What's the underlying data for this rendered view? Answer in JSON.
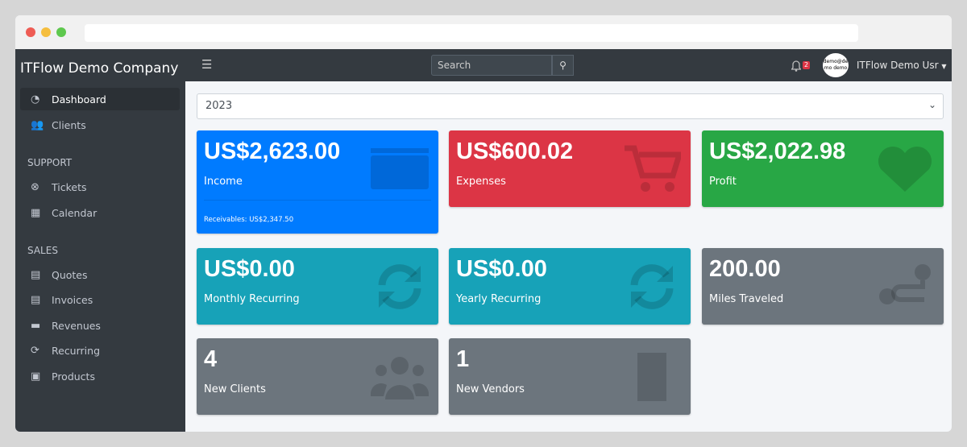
{
  "window": {
    "dots": [
      "#ee5c54",
      "#f5be3e",
      "#5ec84e"
    ]
  },
  "sidebar": {
    "brand": "ITFlow Demo Company",
    "items": [
      {
        "label": "Dashboard",
        "icon": "tachometer-icon",
        "glyph": "◔",
        "active": true
      },
      {
        "label": "Clients",
        "icon": "users-icon",
        "glyph": "👥"
      }
    ],
    "support_label": "SUPPORT",
    "support": [
      {
        "label": "Tickets",
        "icon": "life-ring-icon",
        "glyph": "⊗"
      },
      {
        "label": "Calendar",
        "icon": "calendar-icon",
        "glyph": "▦"
      }
    ],
    "sales_label": "SALES",
    "sales": [
      {
        "label": "Quotes",
        "icon": "file-icon",
        "glyph": "▤"
      },
      {
        "label": "Invoices",
        "icon": "invoice-icon",
        "glyph": "▤"
      },
      {
        "label": "Revenues",
        "icon": "credit-card-icon",
        "glyph": "▬"
      },
      {
        "label": "Recurring",
        "icon": "sync-icon",
        "glyph": "⟳"
      },
      {
        "label": "Products",
        "icon": "box-icon",
        "glyph": "▣"
      }
    ]
  },
  "topnav": {
    "search_placeholder": "Search",
    "notifications": "2",
    "avatar_text": "demo@demo demo",
    "user": "ITFlow Demo Usr"
  },
  "year_select": "2023",
  "cards": [
    {
      "value": "US$2,623.00",
      "label": "Income",
      "footer": "Receivables: US$2,347.50",
      "color": "#007bff",
      "icon": "credit-card-icon"
    },
    {
      "value": "US$600.02",
      "label": "Expenses",
      "color": "#dc3545",
      "icon": "cart-icon"
    },
    {
      "value": "US$2,022.98",
      "label": "Profit",
      "color": "#28a745",
      "icon": "heart-icon"
    },
    {
      "value": "US$0.00",
      "label": "Monthly Recurring",
      "color": "#17a2b8",
      "icon": "sync-icon"
    },
    {
      "value": "US$0.00",
      "label": "Yearly Recurring",
      "color": "#17a2b8",
      "icon": "sync-icon"
    },
    {
      "value": "200.00",
      "label": "Miles Traveled",
      "color": "#6c757d",
      "icon": "route-icon"
    },
    {
      "value": "4",
      "label": "New Clients",
      "color": "#6c757d",
      "icon": "users-icon"
    },
    {
      "value": "1",
      "label": "New Vendors",
      "color": "#6c757d",
      "icon": "building-icon"
    }
  ]
}
